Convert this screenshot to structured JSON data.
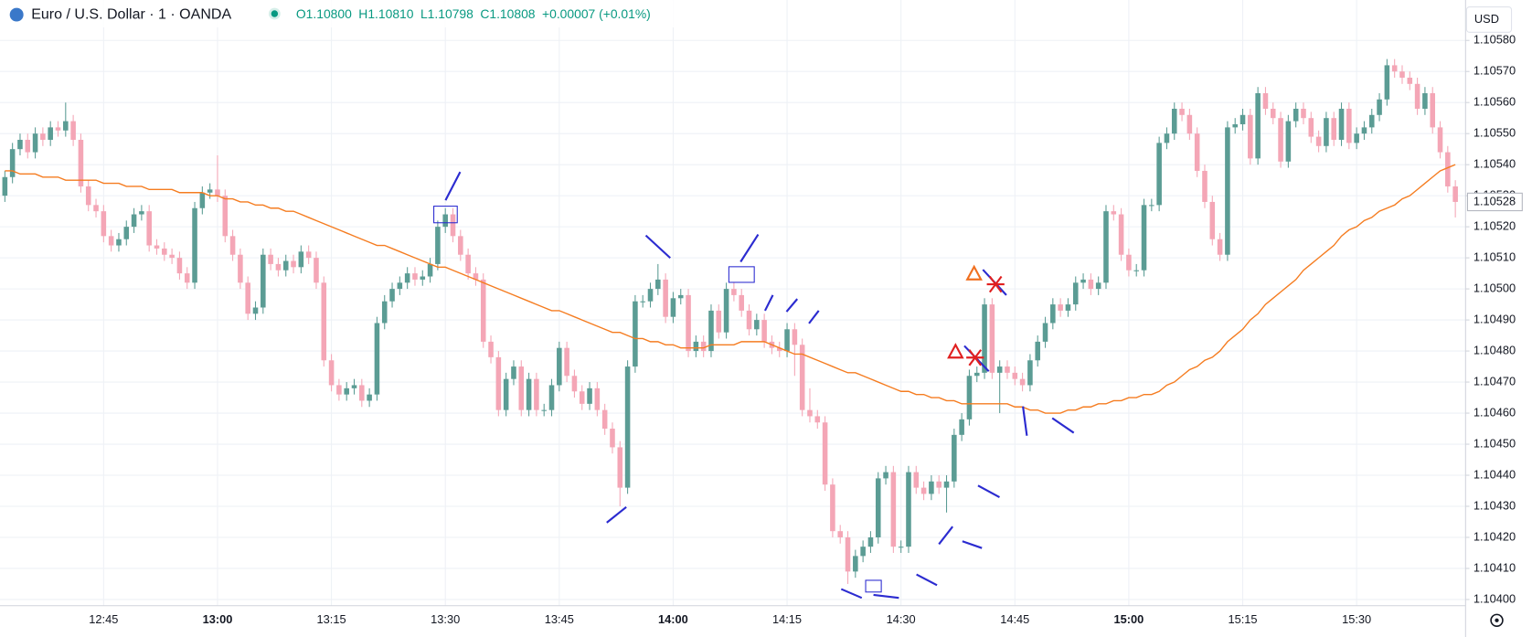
{
  "chart_data": {
    "type": "candlestick",
    "title": "Euro / U.S. Dollar · 1 · OANDA",
    "legend_values": [
      "O1.10800",
      "H1.10810",
      "L1.10798",
      "C1.10808",
      "+0.00007 (+0.01%)"
    ],
    "currency": "USD",
    "up_color": "#5b9c94",
    "down_color": "#f4a6b6",
    "ma_color": "#f57c20",
    "grid": true,
    "categories": [
      null,
      null,
      null,
      null,
      null,
      null,
      null,
      null,
      null,
      null,
      null,
      null,
      null,
      "12:45",
      null,
      null,
      null,
      null,
      null,
      null,
      null,
      null,
      null,
      null,
      null,
      null,
      null,
      null,
      "13:00",
      null,
      null,
      null,
      null,
      null,
      null,
      null,
      null,
      null,
      null,
      null,
      null,
      null,
      null,
      "13:15",
      null,
      null,
      null,
      null,
      null,
      null,
      null,
      null,
      null,
      null,
      null,
      null,
      null,
      null,
      "13:30",
      null,
      null,
      null,
      null,
      null,
      null,
      null,
      null,
      null,
      null,
      null,
      null,
      null,
      null,
      "13:45",
      null,
      null,
      null,
      null,
      null,
      null,
      null,
      null,
      null,
      null,
      null,
      null,
      null,
      null,
      "14:00",
      null,
      null,
      null,
      null,
      null,
      null,
      null,
      null,
      null,
      null,
      null,
      null,
      null,
      null,
      "14:15",
      null,
      null,
      null,
      null,
      null,
      null,
      null,
      null,
      null,
      null,
      null,
      null,
      null,
      null,
      "14:30",
      null,
      null,
      null,
      null,
      null,
      null,
      null,
      null,
      null,
      null,
      null,
      null,
      null,
      null,
      "14:45",
      null,
      null,
      null,
      null,
      null,
      null,
      null,
      null,
      null,
      null,
      null,
      null,
      null,
      null,
      "15:00",
      null,
      null,
      null,
      null,
      null,
      null,
      null,
      null,
      null,
      null,
      null,
      null,
      null,
      null,
      "15:15",
      null,
      null,
      null,
      null,
      null,
      null,
      null,
      null,
      null,
      null,
      null,
      null,
      null,
      null,
      "15:30",
      null,
      null,
      null,
      null,
      null,
      null,
      null,
      null,
      null,
      null,
      null,
      null,
      null
    ],
    "open": [
      1.1053,
      1.10536,
      1.10545,
      1.10548,
      1.10544,
      1.1055,
      1.10548,
      1.10552,
      1.10551,
      1.10554,
      1.10548,
      1.10533,
      1.10527,
      1.10525,
      1.10517,
      1.10514,
      1.10516,
      1.1052,
      1.10524,
      1.10525,
      1.10514,
      1.10513,
      1.10511,
      1.1051,
      1.10505,
      1.10502,
      1.10526,
      1.10531,
      1.10532,
      1.1053,
      1.10517,
      1.10511,
      1.10502,
      1.10492,
      1.10494,
      1.10511,
      1.10508,
      1.10506,
      1.10509,
      1.10507,
      1.10512,
      1.1051,
      1.10502,
      1.10477,
      1.10469,
      1.10466,
      1.10468,
      1.10469,
      1.10464,
      1.10466,
      1.10489,
      1.10496,
      1.105,
      1.10502,
      1.10505,
      1.10503,
      1.10504,
      1.10508,
      1.1052,
      1.10524,
      1.10517,
      1.10511,
      1.10505,
      1.10503,
      1.10483,
      1.10478,
      1.10461,
      1.10471,
      1.10475,
      1.10461,
      1.10471,
      1.10461,
      1.10461,
      1.10469,
      1.10481,
      1.10472,
      1.10467,
      1.10463,
      1.10468,
      1.10461,
      1.10455,
      1.10449,
      1.10436,
      1.10475,
      1.10496,
      1.10496,
      1.105,
      1.10503,
      1.10491,
      1.10497,
      1.10498,
      1.1048,
      1.10483,
      1.1048,
      1.10493,
      1.10486,
      1.105,
      1.10498,
      1.10493,
      1.10487,
      1.1049,
      1.10483,
      1.10481,
      1.1048,
      1.10487,
      1.10482,
      1.10461,
      1.10459,
      1.10457,
      1.10437,
      1.10422,
      1.1042,
      1.10409,
      1.10414,
      1.10417,
      1.1042,
      1.10439,
      1.10441,
      1.10417,
      1.10417,
      1.10441,
      1.10436,
      1.10434,
      1.10438,
      1.10436,
      1.10438,
      1.10453,
      1.10458,
      1.10472,
      1.10473,
      1.10495,
      1.10473,
      1.10475,
      1.10473,
      1.10471,
      1.10469,
      1.10477,
      1.10483,
      1.10489,
      1.10495,
      1.10493,
      1.10495,
      1.10502,
      1.10503,
      1.105,
      1.10502,
      1.10525,
      1.10524,
      1.10511,
      1.10506,
      1.10506,
      1.10527,
      1.10527,
      1.10547,
      1.1055,
      1.10558,
      1.10556,
      1.1055,
      1.10538,
      1.10528,
      1.10516,
      1.10511,
      1.10552,
      1.10553,
      1.10556,
      1.10542,
      1.10563,
      1.10558,
      1.10555,
      1.10541,
      1.10554,
      1.10558,
      1.10555,
      1.10549,
      1.10546,
      1.10555,
      1.10548,
      1.10558,
      1.10547,
      1.1055,
      1.10552,
      1.10556,
      1.10561,
      1.10572,
      1.1057,
      1.10568,
      1.10566,
      1.10558,
      1.10563,
      1.10552,
      1.10544,
      1.10533
    ],
    "high": [
      1.10538,
      1.10547,
      1.1055,
      1.1055,
      1.10552,
      1.10552,
      1.10554,
      1.10554,
      1.1056,
      1.10556,
      1.1055,
      1.10535,
      1.10529,
      1.10527,
      1.10519,
      1.10518,
      1.10522,
      1.10526,
      1.10527,
      1.10527,
      1.10516,
      1.10515,
      1.10513,
      1.10512,
      1.10507,
      1.10528,
      1.10533,
      1.10534,
      1.10543,
      1.10532,
      1.10519,
      1.10513,
      1.10504,
      1.10496,
      1.10513,
      1.10513,
      1.1051,
      1.10511,
      1.10511,
      1.10514,
      1.10514,
      1.10512,
      1.10504,
      1.10479,
      1.10471,
      1.1047,
      1.10471,
      1.10471,
      1.10468,
      1.10491,
      1.10498,
      1.10502,
      1.10504,
      1.10507,
      1.10507,
      1.10506,
      1.1051,
      1.10522,
      1.10526,
      1.10526,
      1.10519,
      1.10513,
      1.10507,
      1.10505,
      1.10485,
      1.1048,
      1.10473,
      1.10477,
      1.10477,
      1.10473,
      1.10473,
      1.10463,
      1.10471,
      1.10483,
      1.10483,
      1.10474,
      1.10469,
      1.1047,
      1.1047,
      1.10463,
      1.10457,
      1.10451,
      1.10477,
      1.10498,
      1.10498,
      1.10502,
      1.10508,
      1.10505,
      1.10499,
      1.105,
      1.105,
      1.10485,
      1.10485,
      1.10495,
      1.10495,
      1.10502,
      1.10502,
      1.105,
      1.10495,
      1.10492,
      1.10492,
      1.10485,
      1.10483,
      1.10489,
      1.10489,
      1.10484,
      1.10468,
      1.10461,
      1.10459,
      1.10439,
      1.10424,
      1.10422,
      1.10416,
      1.10419,
      1.10422,
      1.10441,
      1.10443,
      1.10443,
      1.10419,
      1.10443,
      1.10443,
      1.10438,
      1.1044,
      1.1044,
      1.1044,
      1.10455,
      1.1046,
      1.10474,
      1.10475,
      1.10497,
      1.10497,
      1.10477,
      1.10477,
      1.10475,
      1.10473,
      1.10479,
      1.10485,
      1.10491,
      1.10497,
      1.10497,
      1.10497,
      1.10504,
      1.10505,
      1.10505,
      1.10504,
      1.10527,
      1.10527,
      1.10526,
      1.10513,
      1.10508,
      1.10529,
      1.10529,
      1.10549,
      1.10552,
      1.1056,
      1.1056,
      1.10558,
      1.10552,
      1.1054,
      1.1053,
      1.10518,
      1.10554,
      1.10555,
      1.10558,
      1.10558,
      1.10565,
      1.10565,
      1.1056,
      1.10557,
      1.10556,
      1.1056,
      1.1056,
      1.10557,
      1.10551,
      1.10557,
      1.10557,
      1.1056,
      1.1056,
      1.10552,
      1.10554,
      1.10558,
      1.10563,
      1.10574,
      1.10574,
      1.10572,
      1.1057,
      1.10568,
      1.10565,
      1.10565,
      1.10554,
      1.10546,
      1.10535
    ],
    "low": [
      1.10528,
      1.10534,
      1.10543,
      1.10542,
      1.10542,
      1.10546,
      1.10546,
      1.10549,
      1.10549,
      1.10546,
      1.10531,
      1.10525,
      1.10523,
      1.10515,
      1.10512,
      1.10512,
      1.10514,
      1.10518,
      1.10522,
      1.10512,
      1.10511,
      1.10509,
      1.10508,
      1.10503,
      1.105,
      1.105,
      1.10524,
      1.10529,
      1.10528,
      1.10515,
      1.10509,
      1.105,
      1.1049,
      1.1049,
      1.10492,
      1.10506,
      1.10504,
      1.10504,
      1.10505,
      1.10505,
      1.10508,
      1.105,
      1.10475,
      1.10467,
      1.10464,
      1.10464,
      1.10466,
      1.10462,
      1.10462,
      1.10464,
      1.10487,
      1.10494,
      1.10498,
      1.105,
      1.10501,
      1.10501,
      1.10502,
      1.10506,
      1.10518,
      1.10515,
      1.10509,
      1.10503,
      1.10501,
      1.10481,
      1.10476,
      1.10459,
      1.10459,
      1.10469,
      1.10459,
      1.10459,
      1.10459,
      1.10459,
      1.10459,
      1.10467,
      1.1047,
      1.10465,
      1.10461,
      1.10461,
      1.10459,
      1.10453,
      1.10447,
      1.1043,
      1.10434,
      1.10473,
      1.10494,
      1.10494,
      1.10498,
      1.10489,
      1.10489,
      1.10495,
      1.10478,
      1.10478,
      1.10478,
      1.10478,
      1.10484,
      1.10484,
      1.10496,
      1.10491,
      1.10485,
      1.10485,
      1.10481,
      1.10479,
      1.10478,
      1.10478,
      1.10472,
      1.10459,
      1.10457,
      1.10455,
      1.10435,
      1.1042,
      1.10418,
      1.10405,
      1.10407,
      1.10412,
      1.10415,
      1.10418,
      1.10437,
      1.10415,
      1.10415,
      1.10415,
      1.10434,
      1.10432,
      1.10432,
      1.10434,
      1.10428,
      1.10436,
      1.10451,
      1.10456,
      1.1047,
      1.10471,
      1.10471,
      1.1046,
      1.10471,
      1.10469,
      1.10467,
      1.10467,
      1.10475,
      1.10481,
      1.10487,
      1.10491,
      1.10491,
      1.10493,
      1.105,
      1.10498,
      1.10498,
      1.105,
      1.10522,
      1.10509,
      1.10504,
      1.10504,
      1.10504,
      1.10525,
      1.10525,
      1.10545,
      1.10548,
      1.10554,
      1.10548,
      1.10536,
      1.10526,
      1.10514,
      1.10509,
      1.10509,
      1.1055,
      1.10551,
      1.1054,
      1.1054,
      1.10556,
      1.10553,
      1.10539,
      1.10539,
      1.10552,
      1.10553,
      1.10547,
      1.10544,
      1.10544,
      1.10546,
      1.10546,
      1.10545,
      1.10545,
      1.10548,
      1.1055,
      1.10554,
      1.10559,
      1.10568,
      1.10566,
      1.10564,
      1.10556,
      1.10556,
      1.1055,
      1.10542,
      1.10531,
      1.10523
    ],
    "close": [
      1.10536,
      1.10545,
      1.10548,
      1.10544,
      1.1055,
      1.10548,
      1.10552,
      1.10551,
      1.10554,
      1.10548,
      1.10533,
      1.10527,
      1.10525,
      1.10517,
      1.10514,
      1.10516,
      1.1052,
      1.10524,
      1.10525,
      1.10514,
      1.10513,
      1.10511,
      1.1051,
      1.10505,
      1.10502,
      1.10526,
      1.10531,
      1.10532,
      1.1053,
      1.10517,
      1.10511,
      1.10502,
      1.10492,
      1.10494,
      1.10511,
      1.10508,
      1.10506,
      1.10509,
      1.10507,
      1.10512,
      1.1051,
      1.10502,
      1.10477,
      1.10469,
      1.10466,
      1.10468,
      1.10469,
      1.10464,
      1.10466,
      1.10489,
      1.10496,
      1.105,
      1.10502,
      1.10505,
      1.10503,
      1.10504,
      1.10508,
      1.1052,
      1.10524,
      1.10517,
      1.10511,
      1.10505,
      1.10503,
      1.10483,
      1.10478,
      1.10461,
      1.10471,
      1.10475,
      1.10461,
      1.10471,
      1.10461,
      1.10461,
      1.10469,
      1.10481,
      1.10472,
      1.10467,
      1.10463,
      1.10468,
      1.10461,
      1.10455,
      1.10449,
      1.10436,
      1.10475,
      1.10496,
      1.10496,
      1.105,
      1.10503,
      1.10491,
      1.10497,
      1.10498,
      1.1048,
      1.10483,
      1.1048,
      1.10493,
      1.10486,
      1.105,
      1.10498,
      1.10493,
      1.10487,
      1.1049,
      1.10483,
      1.10481,
      1.1048,
      1.10487,
      1.10482,
      1.10461,
      1.10459,
      1.10457,
      1.10437,
      1.10422,
      1.1042,
      1.10409,
      1.10414,
      1.10417,
      1.1042,
      1.10439,
      1.10441,
      1.10417,
      1.10417,
      1.10441,
      1.10436,
      1.10434,
      1.10438,
      1.10436,
      1.10438,
      1.10453,
      1.10458,
      1.10472,
      1.10473,
      1.10495,
      1.10473,
      1.10475,
      1.10473,
      1.10471,
      1.10469,
      1.10477,
      1.10483,
      1.10489,
      1.10495,
      1.10493,
      1.10495,
      1.10502,
      1.10503,
      1.105,
      1.10502,
      1.10525,
      1.10524,
      1.10511,
      1.10506,
      1.10506,
      1.10527,
      1.10527,
      1.10547,
      1.1055,
      1.10558,
      1.10556,
      1.1055,
      1.10538,
      1.10528,
      1.10516,
      1.10511,
      1.10552,
      1.10553,
      1.10556,
      1.10542,
      1.10563,
      1.10558,
      1.10555,
      1.10541,
      1.10554,
      1.10558,
      1.10555,
      1.10549,
      1.10546,
      1.10555,
      1.10548,
      1.10558,
      1.10547,
      1.1055,
      1.10552,
      1.10556,
      1.10561,
      1.10572,
      1.1057,
      1.10568,
      1.10566,
      1.10558,
      1.10563,
      1.10552,
      1.10544,
      1.10533,
      1.10528
    ],
    "moving_average": [
      1.10538,
      1.10538,
      1.10537,
      1.10537,
      1.10537,
      1.10536,
      1.10536,
      1.10536,
      1.10535,
      1.10535,
      1.10535,
      1.10535,
      1.10535,
      1.10534,
      1.10534,
      1.10534,
      1.10533,
      1.10533,
      1.10533,
      1.10532,
      1.10532,
      1.10532,
      1.10532,
      1.10531,
      1.10531,
      1.10531,
      1.10531,
      1.1053,
      1.1053,
      1.10529,
      1.10529,
      1.10528,
      1.10528,
      1.10527,
      1.10527,
      1.10526,
      1.10526,
      1.10525,
      1.10525,
      1.10524,
      1.10523,
      1.10522,
      1.10521,
      1.1052,
      1.10519,
      1.10518,
      1.10517,
      1.10516,
      1.10515,
      1.10514,
      1.10514,
      1.10513,
      1.10512,
      1.10511,
      1.1051,
      1.10509,
      1.10508,
      1.10507,
      1.10507,
      1.10506,
      1.10505,
      1.10504,
      1.10503,
      1.10502,
      1.10501,
      1.105,
      1.10499,
      1.10498,
      1.10497,
      1.10496,
      1.10495,
      1.10494,
      1.10493,
      1.10493,
      1.10492,
      1.10491,
      1.1049,
      1.10489,
      1.10488,
      1.10487,
      1.10486,
      1.10486,
      1.10485,
      1.10484,
      1.10484,
      1.10483,
      1.10483,
      1.10482,
      1.10482,
      1.10481,
      1.10481,
      1.10481,
      1.10481,
      1.10482,
      1.10482,
      1.10482,
      1.10482,
      1.10483,
      1.10483,
      1.10483,
      1.10483,
      1.10482,
      1.10481,
      1.1048,
      1.10479,
      1.10479,
      1.10478,
      1.10477,
      1.10476,
      1.10475,
      1.10474,
      1.10473,
      1.10473,
      1.10472,
      1.10471,
      1.1047,
      1.10469,
      1.10468,
      1.10467,
      1.10467,
      1.10466,
      1.10466,
      1.10465,
      1.10465,
      1.10464,
      1.10464,
      1.10463,
      1.10463,
      1.10463,
      1.10463,
      1.10463,
      1.10463,
      1.10463,
      1.10462,
      1.10462,
      1.10461,
      1.10461,
      1.1046,
      1.1046,
      1.1046,
      1.10461,
      1.10461,
      1.10462,
      1.10462,
      1.10463,
      1.10463,
      1.10464,
      1.10464,
      1.10465,
      1.10465,
      1.10466,
      1.10466,
      1.10467,
      1.10469,
      1.1047,
      1.10472,
      1.10474,
      1.10475,
      1.10477,
      1.10478,
      1.1048,
      1.10483,
      1.10485,
      1.10487,
      1.1049,
      1.10492,
      1.10495,
      1.10497,
      1.10499,
      1.10501,
      1.10503,
      1.10506,
      1.10508,
      1.1051,
      1.10512,
      1.10514,
      1.10517,
      1.10519,
      1.1052,
      1.10522,
      1.10523,
      1.10525,
      1.10526,
      1.10527,
      1.10529,
      1.1053,
      1.10532,
      1.10534,
      1.10536,
      1.10538,
      1.10539,
      1.1054
    ],
    "ylim": [
      1.10398,
      1.10593
    ],
    "yticks": [
      {
        "value": 1.104,
        "label": "1.10400"
      },
      {
        "value": 1.1041,
        "label": "1.10410"
      },
      {
        "value": 1.1042,
        "label": "1.10420"
      },
      {
        "value": 1.1043,
        "label": "1.10430"
      },
      {
        "value": 1.1044,
        "label": "1.10440"
      },
      {
        "value": 1.1045,
        "label": "1.10450"
      },
      {
        "value": 1.1046,
        "label": "1.10460"
      },
      {
        "value": 1.1047,
        "label": "1.10470"
      },
      {
        "value": 1.1048,
        "label": "1.10480"
      },
      {
        "value": 1.1049,
        "label": "1.10490"
      },
      {
        "value": 1.105,
        "label": "1.10500"
      },
      {
        "value": 1.1051,
        "label": "1.10510"
      },
      {
        "value": 1.1052,
        "label": "1.10520"
      },
      {
        "value": 1.1053,
        "label": "1.10530"
      },
      {
        "value": 1.1054,
        "label": "1.10540"
      },
      {
        "value": 1.1055,
        "label": "1.10550"
      },
      {
        "value": 1.1056,
        "label": "1.10560"
      },
      {
        "value": 1.1057,
        "label": "1.10570"
      },
      {
        "value": 1.1058,
        "label": "1.10580"
      }
    ],
    "last_price": {
      "value": 1.10528,
      "label": "1.10528"
    }
  }
}
